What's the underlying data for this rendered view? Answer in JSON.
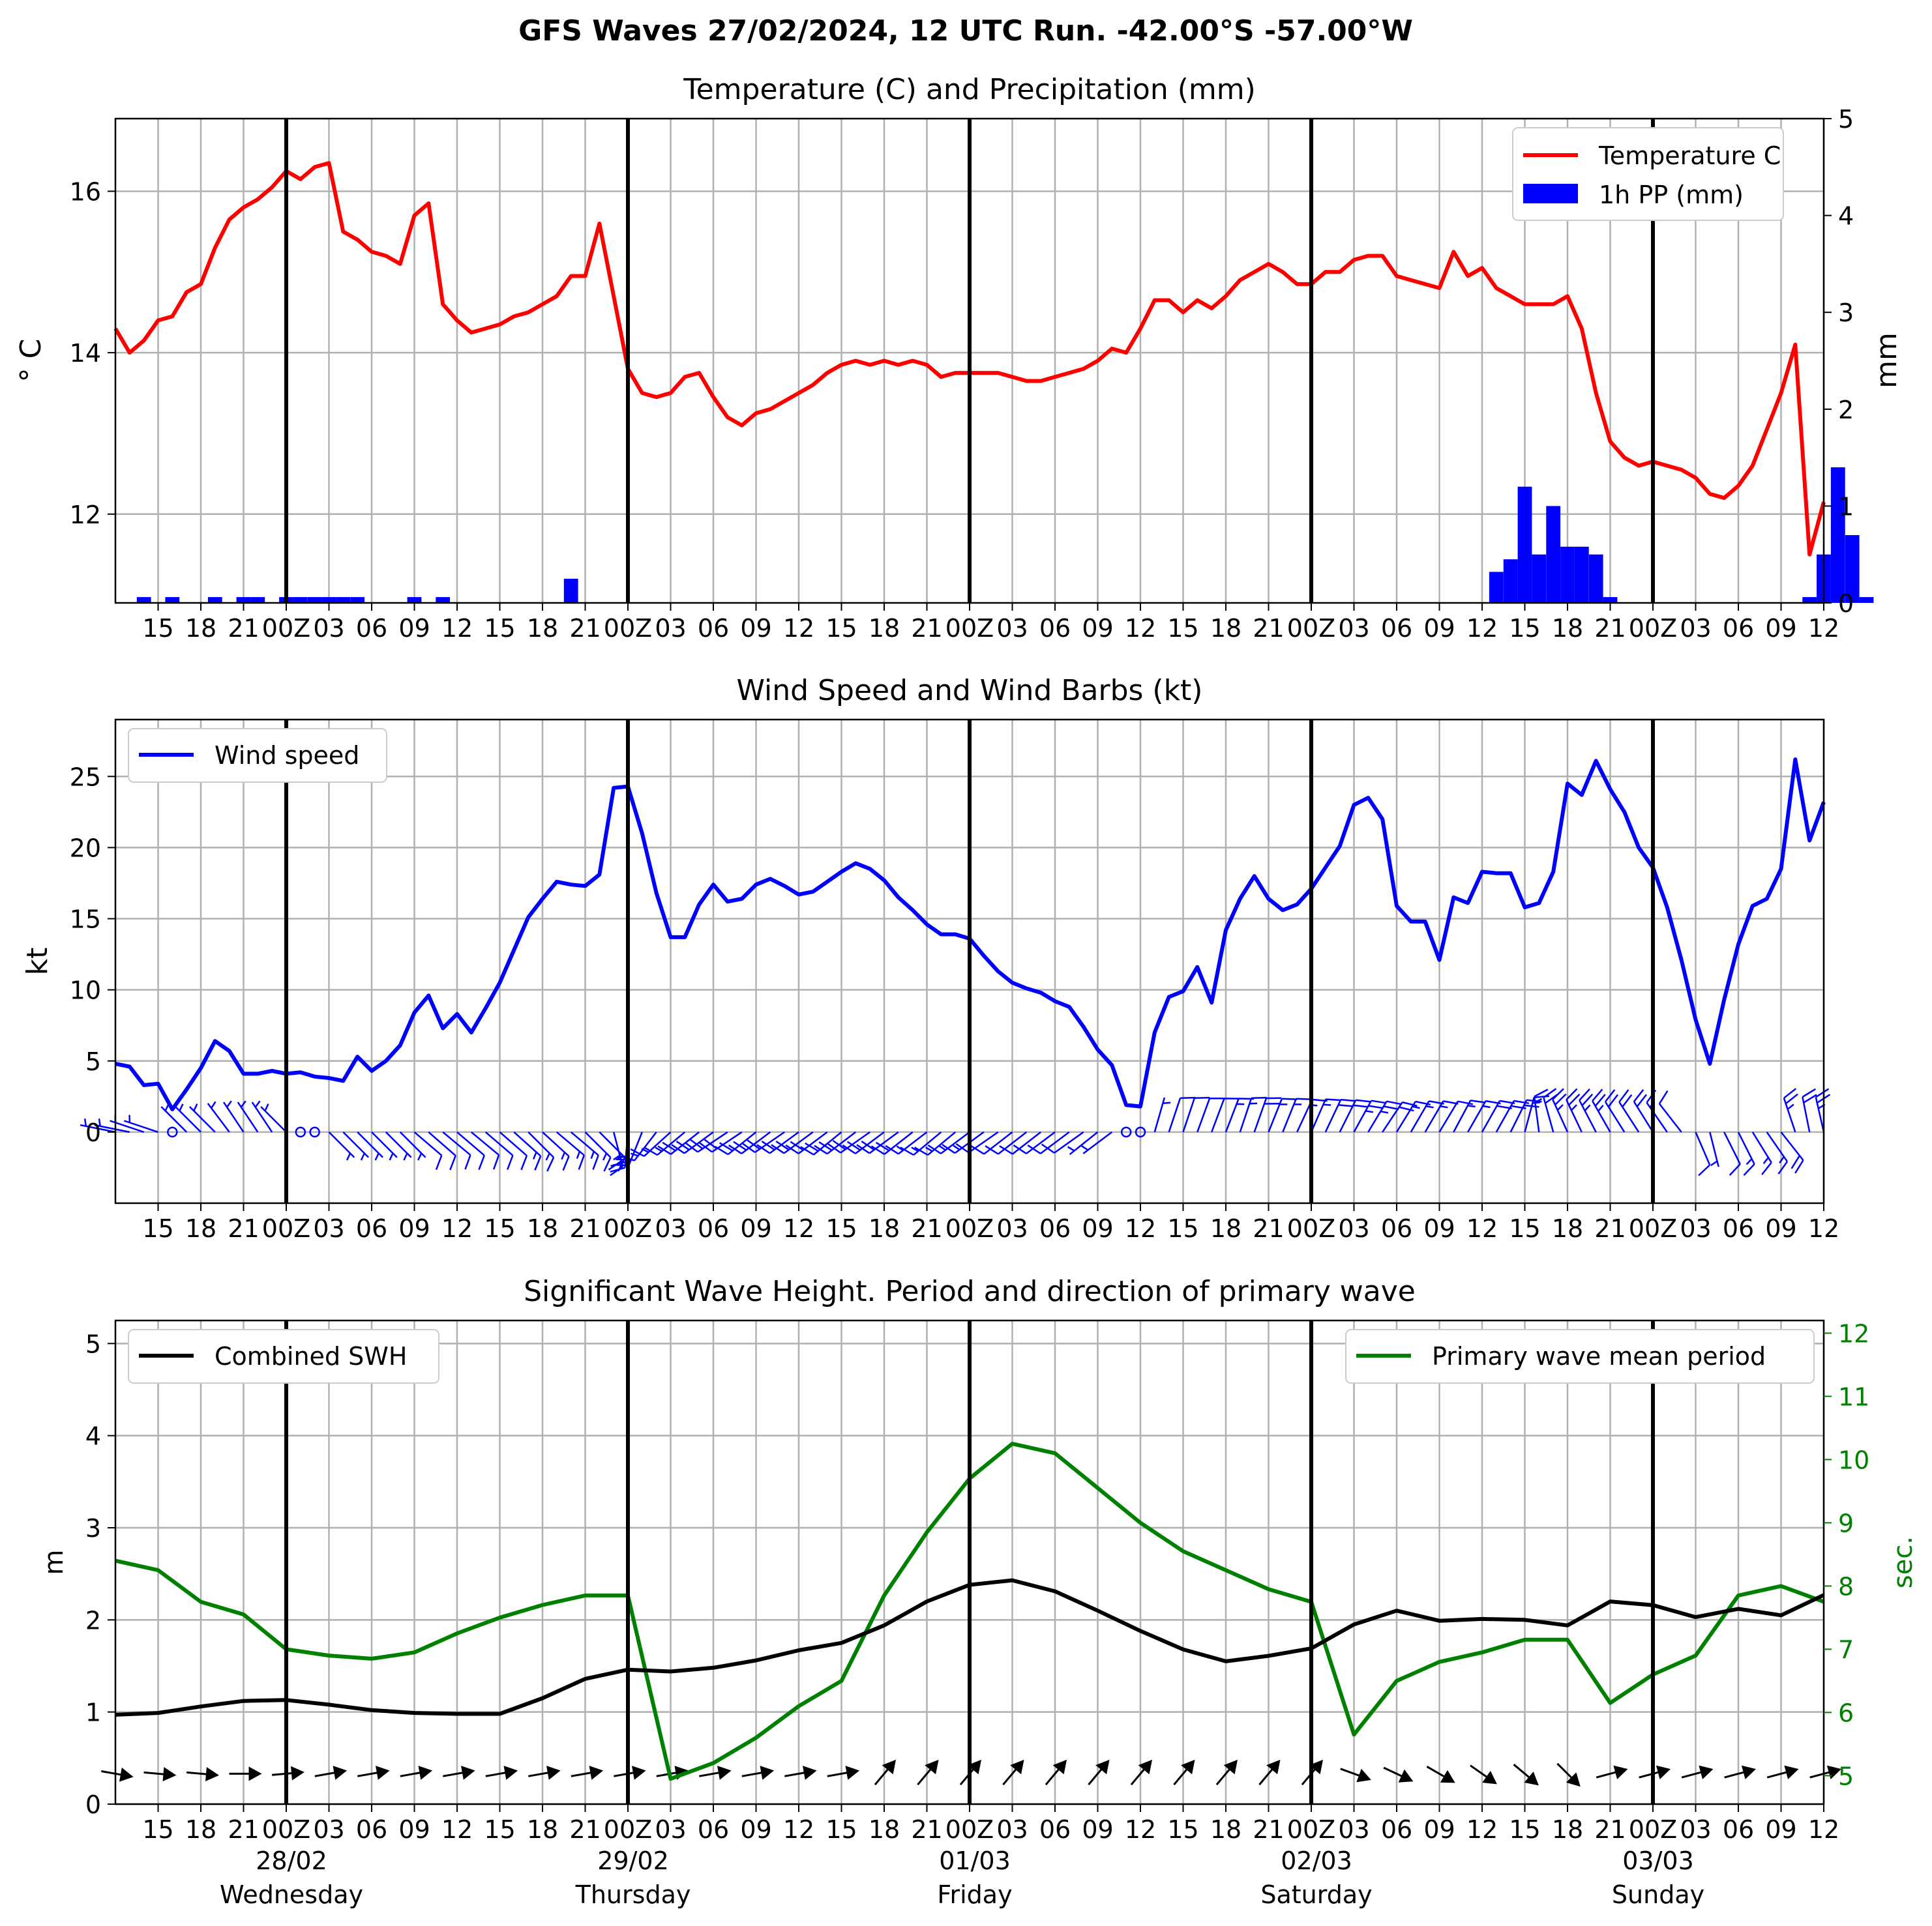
{
  "suptitle": "GFS Waves 27/02/2024, 12 UTC Run. -42.00°S -57.00°W",
  "colors": {
    "temperature": "#ff0000",
    "precip": "#0000ff",
    "wind": "#0000ff",
    "swh": "#000000",
    "period": "#008000",
    "grid": "#b0b0b0",
    "day_line": "#000000"
  },
  "x_axis": {
    "start_hour": 12,
    "end_hour": 132,
    "tick_labels": [
      "15",
      "18",
      "21",
      "00Z",
      "03",
      "06",
      "09",
      "12",
      "15",
      "18",
      "21",
      "00Z",
      "03",
      "06",
      "09",
      "12",
      "15",
      "18",
      "21",
      "00Z",
      "03",
      "06",
      "09",
      "12",
      "15",
      "18",
      "21",
      "00Z",
      "03",
      "06",
      "09",
      "12",
      "15",
      "18",
      "21",
      "00Z",
      "03",
      "06",
      "09",
      "12"
    ],
    "day_labels": [
      {
        "date": "28/02",
        "weekday": "Wednesday"
      },
      {
        "date": "29/02",
        "weekday": "Thursday"
      },
      {
        "date": "01/03",
        "weekday": "Friday"
      },
      {
        "date": "02/03",
        "weekday": "Saturday"
      },
      {
        "date": "03/03",
        "weekday": "Sunday"
      }
    ]
  },
  "chart_data": [
    {
      "type": "line",
      "title": "Temperature (C) and Precipitation (mm)",
      "ylabel": "° C",
      "ylabel_right": "mm",
      "ylim": [
        10.9,
        16.9
      ],
      "ylim_right": [
        0,
        5
      ],
      "yticks": [
        12,
        14,
        16
      ],
      "yticks_right": [
        0,
        1,
        2,
        3,
        4,
        5
      ],
      "grid": true,
      "legend_position": "top-right",
      "series": [
        {
          "name": "Temperature C",
          "kind": "line",
          "axis": "left",
          "values": [
            14.3,
            14.0,
            14.15,
            14.4,
            14.45,
            14.75,
            14.85,
            15.3,
            15.65,
            15.8,
            15.9,
            16.05,
            16.25,
            16.15,
            16.3,
            16.35,
            15.5,
            15.4,
            15.25,
            15.2,
            15.1,
            15.7,
            15.85,
            14.6,
            14.4,
            14.25,
            14.3,
            14.35,
            14.45,
            14.5,
            14.6,
            14.7,
            14.95,
            14.95,
            15.6,
            14.7,
            13.8,
            13.5,
            13.45,
            13.5,
            13.7,
            13.75,
            13.45,
            13.2,
            13.1,
            13.25,
            13.3,
            13.4,
            13.5,
            13.6,
            13.75,
            13.85,
            13.9,
            13.85,
            13.9,
            13.85,
            13.9,
            13.85,
            13.7,
            13.75,
            13.75,
            13.75,
            13.75,
            13.7,
            13.65,
            13.65,
            13.7,
            13.75,
            13.8,
            13.9,
            14.05,
            14.0,
            14.3,
            14.65,
            14.65,
            14.5,
            14.65,
            14.55,
            14.7,
            14.9,
            15.0,
            15.1,
            15.0,
            14.85,
            14.85,
            15.0,
            15.0,
            15.15,
            15.2,
            15.2,
            14.95,
            14.9,
            14.85,
            14.8,
            15.25,
            14.95,
            15.05,
            14.8,
            14.7,
            14.6,
            14.6,
            14.6,
            14.7,
            14.3,
            13.5,
            12.9,
            12.7,
            12.6,
            12.65,
            12.6,
            12.55,
            12.45,
            12.25,
            12.2,
            12.35,
            12.6,
            13.05,
            13.5,
            14.1,
            11.5,
            12.15
          ]
        },
        {
          "name": "1h PP (mm)",
          "kind": "bar",
          "axis": "right",
          "values": [
            0,
            0.06,
            0,
            0.06,
            0,
            0,
            0.06,
            0,
            0.06,
            0.06,
            0,
            0.06,
            0.06,
            0.06,
            0.06,
            0.06,
            0.06,
            0,
            0,
            0,
            0.06,
            0,
            0.06,
            0,
            0,
            0,
            0,
            0,
            0,
            0,
            0,
            0.25,
            0,
            0,
            0,
            0,
            0,
            0,
            0,
            0,
            0,
            0,
            0,
            0,
            0,
            0,
            0,
            0,
            0,
            0,
            0,
            0,
            0,
            0,
            0,
            0,
            0,
            0,
            0,
            0,
            0,
            0,
            0,
            0,
            0,
            0,
            0,
            0,
            0,
            0,
            0,
            0,
            0,
            0,
            0,
            0,
            0,
            0,
            0,
            0,
            0,
            0,
            0,
            0,
            0,
            0,
            0,
            0,
            0,
            0,
            0,
            0,
            0,
            0,
            0,
            0,
            0.32,
            0.45,
            1.2,
            0.5,
            1.0,
            0.58,
            0.58,
            0.5,
            0.06,
            0,
            0,
            0,
            0,
            0,
            0,
            0,
            0,
            0,
            0,
            0,
            0,
            0,
            0.06,
            0.5,
            1.4,
            0.7,
            0.06
          ]
        }
      ]
    },
    {
      "type": "line",
      "title": "Wind Speed and Wind Barbs (kt)",
      "ylabel": "kt",
      "ylim": [
        -5,
        29
      ],
      "yticks": [
        0,
        5,
        10,
        15,
        20,
        25
      ],
      "grid": true,
      "legend_position": "top-left",
      "series": [
        {
          "name": "Wind speed",
          "kind": "line",
          "values": [
            4.8,
            4.6,
            3.3,
            3.4,
            1.6,
            3.0,
            4.5,
            6.4,
            5.7,
            4.1,
            4.1,
            4.3,
            4.1,
            4.2,
            3.9,
            3.8,
            3.6,
            5.3,
            4.3,
            5.0,
            6.1,
            8.4,
            9.6,
            7.3,
            8.3,
            7.0,
            8.7,
            10.5,
            12.8,
            15.1,
            16.4,
            17.6,
            17.4,
            17.3,
            18.1,
            24.2,
            24.3,
            21.0,
            16.8,
            13.7,
            13.7,
            16.0,
            17.4,
            16.2,
            16.4,
            17.4,
            17.8,
            17.3,
            16.7,
            16.9,
            17.6,
            18.3,
            18.9,
            18.5,
            17.7,
            16.5,
            15.6,
            14.6,
            13.9,
            13.9,
            13.6,
            12.4,
            11.3,
            10.5,
            10.1,
            9.8,
            9.2,
            8.8,
            7.4,
            5.8,
            4.7,
            1.9,
            1.8,
            7.0,
            9.5,
            9.9,
            11.6,
            9.1,
            14.2,
            16.4,
            18.0,
            16.4,
            15.6,
            16.0,
            17.1,
            18.6,
            20.1,
            23.0,
            23.5,
            22.0,
            15.9,
            14.8,
            14.8,
            12.1,
            16.5,
            16.1,
            18.3,
            18.2,
            18.2,
            15.8,
            16.1,
            18.3,
            24.5,
            23.7,
            26.1,
            24.1,
            22.5,
            20.0,
            18.6,
            15.8,
            12.1,
            7.9,
            4.8,
            9.3,
            13.2,
            15.9,
            16.4,
            18.5,
            26.2,
            20.5,
            23.2
          ]
        },
        {
          "name": "",
          "kind": "wind_barbs",
          "u": [
            5,
            5,
            3,
            3,
            1,
            2,
            3,
            4,
            3,
            2,
            2,
            2,
            2,
            1,
            -1,
            -2,
            -3,
            -4,
            -4,
            -4,
            -5,
            -7,
            -8,
            -6,
            -7,
            -6,
            -7,
            -8,
            -10,
            -11,
            -12,
            -13,
            -13,
            -12,
            -12,
            -6,
            2,
            8,
            10,
            11,
            12,
            14,
            15,
            15,
            15,
            15,
            16,
            16,
            15,
            15,
            16,
            16,
            17,
            17,
            16,
            15,
            14,
            13,
            12,
            12,
            12,
            11,
            10,
            9,
            9,
            9,
            8,
            8,
            7,
            5,
            4,
            1,
            1,
            -2,
            -3,
            -3,
            -4,
            -3,
            -5,
            -5,
            -6,
            -6,
            -6,
            -7,
            -7,
            -8,
            -9,
            -11,
            -12,
            -12,
            -8,
            -7,
            -7,
            -6,
            -8,
            -8,
            -9,
            -9,
            -8,
            -4,
            2,
            5,
            10,
            10,
            12,
            12,
            12,
            11,
            10,
            9,
            7,
            -3,
            -1,
            -4,
            -6,
            -8,
            -9,
            -11,
            8,
            4,
            5
          ],
          "v": [
            -1,
            -1,
            -1,
            -1,
            -1,
            -2,
            -3,
            -4,
            -4,
            -3,
            -3,
            -3,
            -2,
            -1,
            1,
            2,
            3,
            4,
            4,
            4,
            5,
            6,
            7,
            5,
            6,
            5,
            6,
            7,
            9,
            11,
            11,
            11,
            11,
            12,
            12,
            23,
            24,
            20,
            13,
            10,
            10,
            11,
            11,
            10,
            10,
            12,
            12,
            11,
            11,
            11,
            12,
            13,
            13,
            12,
            12,
            11,
            11,
            10,
            10,
            10,
            9,
            8,
            7,
            7,
            7,
            7,
            6,
            6,
            5,
            4,
            3,
            0,
            0,
            -7,
            -9,
            -9,
            -11,
            -8,
            -13,
            -15,
            -17,
            -15,
            -15,
            -15,
            -16,
            -17,
            -18,
            -20,
            -20,
            -18,
            -13,
            -12,
            -12,
            -10,
            -15,
            -14,
            -16,
            -16,
            -16,
            -15,
            -15,
            -18,
            -22,
            -21,
            -23,
            -21,
            -19,
            -17,
            -16,
            -13,
            -9,
            7,
            4,
            8,
            12,
            13,
            13,
            14,
            -24,
            -20,
            -22
          ]
        }
      ]
    },
    {
      "type": "line",
      "title": "Significant Wave Height. Period and direction of primary wave",
      "ylabel": "m",
      "ylabel_right": "sec.",
      "ylim": [
        0,
        5.25
      ],
      "ylim_right": [
        4.55,
        12.2
      ],
      "yticks": [
        0,
        1,
        2,
        3,
        4,
        5
      ],
      "yticks_right": [
        5,
        6,
        7,
        8,
        9,
        10,
        11,
        12
      ],
      "grid": true,
      "series": [
        {
          "name": "Combined SWH",
          "kind": "line",
          "axis": "left",
          "legend_position": "top-left",
          "values": [
            0.97,
            0.99,
            1.06,
            1.12,
            1.13,
            1.08,
            1.02,
            0.99,
            0.98,
            0.98,
            1.15,
            1.36,
            1.46,
            1.44,
            1.48,
            1.56,
            1.67,
            1.75,
            1.94,
            2.2,
            2.38,
            2.43,
            2.31,
            2.1,
            1.88,
            1.68,
            1.55,
            1.61,
            1.69,
            1.95,
            2.1,
            1.99,
            2.01,
            2.0,
            1.94,
            2.2,
            2.16,
            2.03,
            2.12,
            2.05,
            2.27
          ]
        },
        {
          "name": "Primary wave mean period",
          "kind": "line",
          "axis": "right",
          "legend_position": "top-right",
          "values": [
            8.4,
            8.25,
            7.75,
            7.55,
            7.0,
            6.9,
            6.85,
            6.95,
            7.25,
            7.5,
            7.7,
            7.85,
            7.85,
            4.95,
            5.2,
            5.6,
            6.1,
            6.5,
            7.85,
            8.85,
            9.7,
            10.25,
            10.1,
            9.55,
            9.0,
            8.55,
            8.25,
            7.95,
            7.75,
            5.65,
            6.5,
            6.8,
            6.95,
            7.15,
            7.15,
            6.15,
            6.6,
            6.9,
            7.85,
            8.0,
            7.75
          ]
        },
        {
          "name": "",
          "kind": "direction_arrows",
          "dir_to_deg": [
            100,
            95,
            95,
            90,
            85,
            80,
            80,
            80,
            80,
            80,
            80,
            80,
            80,
            80,
            80,
            80,
            80,
            80,
            40,
            40,
            40,
            40,
            40,
            40,
            40,
            40,
            40,
            40,
            40,
            110,
            115,
            120,
            125,
            130,
            135,
            75,
            75,
            75,
            75,
            75,
            75
          ]
        }
      ]
    }
  ]
}
